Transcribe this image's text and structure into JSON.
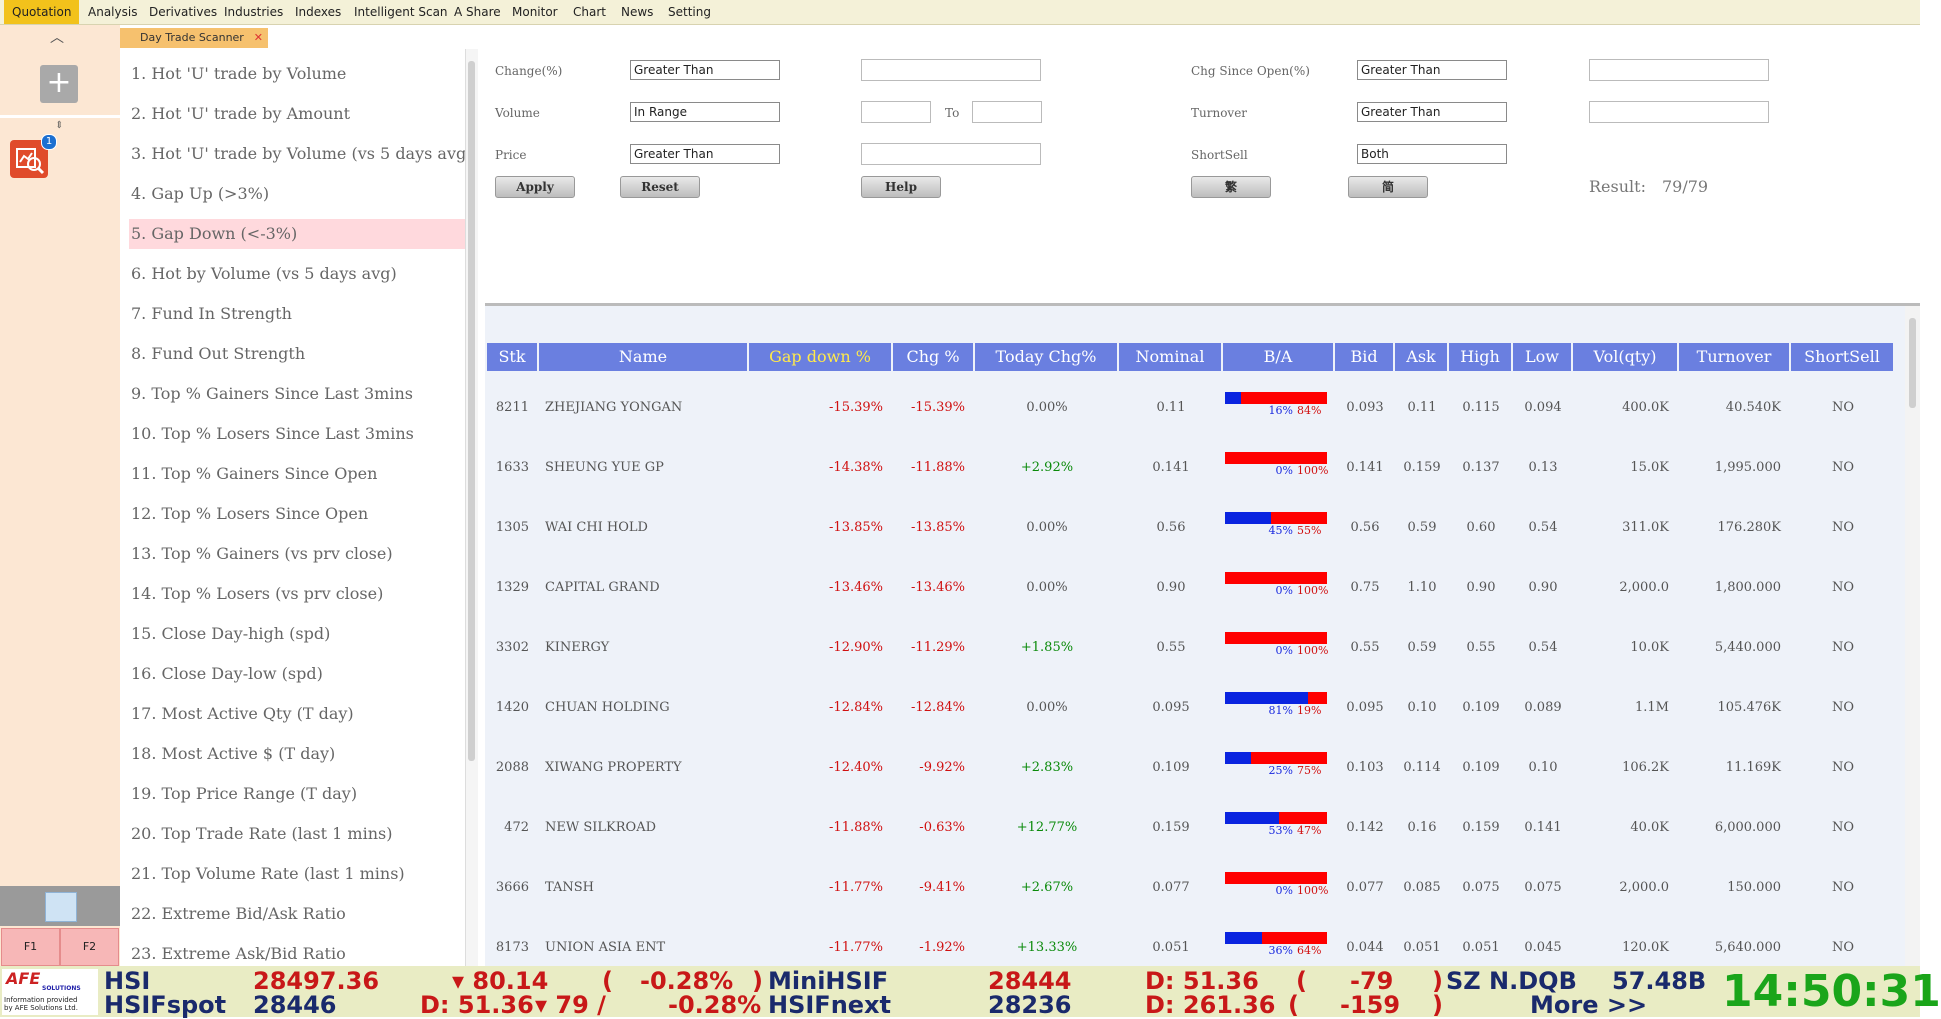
{
  "menu": [
    "Quotation",
    "Analysis",
    "Derivatives",
    "Industries",
    "Indexes",
    "Intelligent Scan",
    "A Share",
    "Monitor",
    "Chart",
    "News",
    "Setting"
  ],
  "left": {
    "badge_count": "1",
    "f1": "F1",
    "f2": "F2"
  },
  "tab": {
    "label": "Day Trade Scanner",
    "close": "✕"
  },
  "scans": [
    "1. Hot 'U' trade by Volume",
    "2. Hot 'U' trade by Amount",
    "3. Hot 'U' trade by Volume (vs 5 days avg)",
    "4. Gap Up (>3%)",
    "5. Gap Down (<-3%)",
    "6. Hot by Volume (vs 5 days avg)",
    "7. Fund In Strength",
    "8. Fund Out Strength",
    "9. Top % Gainers Since Last 3mins",
    "10. Top % Losers Since Last 3mins",
    "11. Top % Gainers Since Open",
    "12. Top % Losers Since Open",
    "13. Top % Gainers (vs prv close)",
    "14. Top % Losers (vs prv close)",
    "15. Close Day-high (spd)",
    "16. Close Day-low (spd)",
    "17. Most Active Qty (T day)",
    "18. Most Active $ (T day)",
    "19. Top Price Range (T day)",
    "20. Top Trade Rate (last 1 mins)",
    "21. Top Volume Rate (last 1 mins)",
    "22. Extreme Bid/Ask Ratio",
    "23. Extreme Ask/Bid Ratio"
  ],
  "filter": {
    "change_label": "Change(%)",
    "change_op": "Greater Than",
    "volume_label": "Volume",
    "volume_op": "In Range",
    "to_label": "To",
    "price_label": "Price",
    "price_op": "Greater Than",
    "chg_open_label": "Chg Since Open(%)",
    "chg_open_op": "Greater Than",
    "turnover_label": "Turnover",
    "turnover_op": "Greater Than",
    "shortsell_label": "ShortSell",
    "shortsell_op": "Both",
    "apply": "Apply",
    "reset": "Reset",
    "help": "Help",
    "trad": "繁",
    "simp": "简",
    "result_label": "Result:",
    "result_value": "79/79"
  },
  "table": {
    "headers": [
      "Stk",
      "Name",
      "Gap down %",
      "Chg %",
      "Today Chg%",
      "Nominal",
      "B/A",
      "Bid",
      "Ask",
      "High",
      "Low",
      "Vol(qty)",
      "Turnover",
      "ShortSell"
    ],
    "rows": [
      {
        "stk": "8211",
        "name": "ZHEJIANG YONGAN",
        "gap": "-15.39%",
        "chg": "-15.39%",
        "today": "0.00%",
        "nominal": "0.11",
        "bid_pct": 16,
        "b": "16%",
        "a": "84%",
        "bid": "0.093",
        "ask": "0.11",
        "high": "0.115",
        "low": "0.094",
        "vol": "400.0K",
        "turnover": "40.540K",
        "ss": "NO"
      },
      {
        "stk": "1633",
        "name": "SHEUNG YUE GP",
        "gap": "-14.38%",
        "chg": "-11.88%",
        "today": "+2.92%",
        "nominal": "0.141",
        "bid_pct": 0,
        "b": "0%",
        "a": "100%",
        "bid": "0.141",
        "ask": "0.159",
        "high": "0.137",
        "low": "0.13",
        "vol": "15.0K",
        "turnover": "1,995.000",
        "ss": "NO"
      },
      {
        "stk": "1305",
        "name": "WAI CHI HOLD",
        "gap": "-13.85%",
        "chg": "-13.85%",
        "today": "0.00%",
        "nominal": "0.56",
        "bid_pct": 45,
        "b": "45%",
        "a": "55%",
        "bid": "0.56",
        "ask": "0.59",
        "high": "0.60",
        "low": "0.54",
        "vol": "311.0K",
        "turnover": "176.280K",
        "ss": "NO"
      },
      {
        "stk": "1329",
        "name": "CAPITAL GRAND",
        "gap": "-13.46%",
        "chg": "-13.46%",
        "today": "0.00%",
        "nominal": "0.90",
        "bid_pct": 0,
        "b": "0%",
        "a": "100%",
        "bid": "0.75",
        "ask": "1.10",
        "high": "0.90",
        "low": "0.90",
        "vol": "2,000.0",
        "turnover": "1,800.000",
        "ss": "NO"
      },
      {
        "stk": "3302",
        "name": "KINERGY",
        "gap": "-12.90%",
        "chg": "-11.29%",
        "today": "+1.85%",
        "nominal": "0.55",
        "bid_pct": 0,
        "b": "0%",
        "a": "100%",
        "bid": "0.55",
        "ask": "0.59",
        "high": "0.55",
        "low": "0.54",
        "vol": "10.0K",
        "turnover": "5,440.000",
        "ss": "NO"
      },
      {
        "stk": "1420",
        "name": "CHUAN HOLDING",
        "gap": "-12.84%",
        "chg": "-12.84%",
        "today": "0.00%",
        "nominal": "0.095",
        "bid_pct": 81,
        "b": "81%",
        "a": "19%",
        "bid": "0.095",
        "ask": "0.10",
        "high": "0.109",
        "low": "0.089",
        "vol": "1.1M",
        "turnover": "105.476K",
        "ss": "NO"
      },
      {
        "stk": "2088",
        "name": "XIWANG PROPERTY",
        "gap": "-12.40%",
        "chg": "-9.92%",
        "today": "+2.83%",
        "nominal": "0.109",
        "bid_pct": 25,
        "b": "25%",
        "a": "75%",
        "bid": "0.103",
        "ask": "0.114",
        "high": "0.109",
        "low": "0.10",
        "vol": "106.2K",
        "turnover": "11.169K",
        "ss": "NO"
      },
      {
        "stk": "472",
        "name": "NEW SILKROAD",
        "gap": "-11.88%",
        "chg": "-0.63%",
        "today": "+12.77%",
        "nominal": "0.159",
        "bid_pct": 53,
        "b": "53%",
        "a": "47%",
        "bid": "0.142",
        "ask": "0.16",
        "high": "0.159",
        "low": "0.141",
        "vol": "40.0K",
        "turnover": "6,000.000",
        "ss": "NO"
      },
      {
        "stk": "3666",
        "name": "TANSH",
        "gap": "-11.77%",
        "chg": "-9.41%",
        "today": "+2.67%",
        "nominal": "0.077",
        "bid_pct": 0,
        "b": "0%",
        "a": "100%",
        "bid": "0.077",
        "ask": "0.085",
        "high": "0.075",
        "low": "0.075",
        "vol": "2,000.0",
        "turnover": "150.000",
        "ss": "NO"
      },
      {
        "stk": "8173",
        "name": "UNION ASIA ENT",
        "gap": "-11.77%",
        "chg": "-1.92%",
        "today": "+13.33%",
        "nominal": "0.051",
        "bid_pct": 36,
        "b": "36%",
        "a": "64%",
        "bid": "0.044",
        "ask": "0.051",
        "high": "0.051",
        "low": "0.045",
        "vol": "120.0K",
        "turnover": "5,640.000",
        "ss": "NO"
      }
    ]
  },
  "ticker": {
    "logo": "AFE",
    "logo_sub": "SOLUTIONS",
    "logo_info1": "Information provided",
    "logo_info2": "by AFE Solutions Ltd.",
    "row1": {
      "hsi": "HSI",
      "hsi_val": "28497.36",
      "hsi_chg": "▾ 80.14",
      "hsi_paren": "(",
      "hsi_pct": "-0.28%",
      "hsi_close": ")",
      "mini": "MiniHSIF",
      "mini_val": "28444",
      "mini_d": "D: 51.36",
      "mini_paren": "(",
      "mini_chg": "-79",
      "mini_close": ")",
      "sz": "SZ N.DQB",
      "sz_val": "57.48B"
    },
    "row2": {
      "spot": "HSIFspot",
      "spot_val": "28446",
      "spot_d": "D: 51.36",
      "spot_chg": "▾     79 /",
      "spot_pct": "-0.28%",
      "next": "HSIFnext",
      "next_val": "28236",
      "next_d": "D: 261.36",
      "next_paren": "(",
      "next_chg": "-159",
      "next_close": ")",
      "more": "More >>"
    },
    "clock": "14:50:31"
  }
}
